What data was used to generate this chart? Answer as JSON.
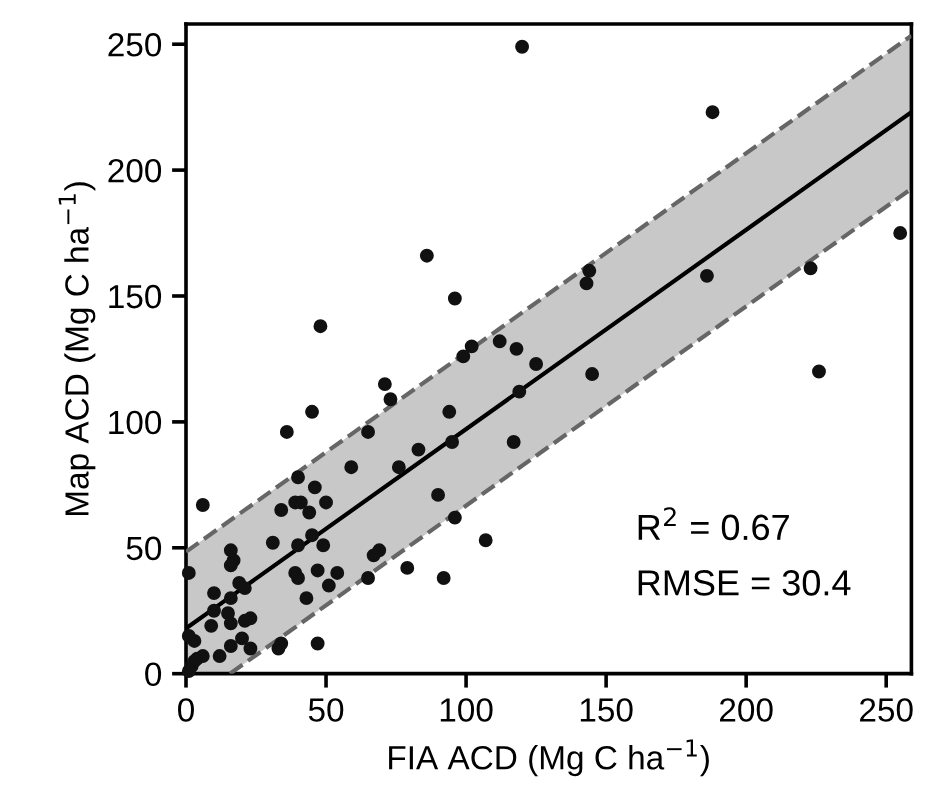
{
  "chart_data": {
    "type": "scatter",
    "xlabel": "FIA ACD (Mg C ha$^{−1}$)",
    "ylabel": "Map ACD (Mg C ha$^{−1}$)",
    "xlim": [
      0,
      259
    ],
    "ylim": [
      0,
      258
    ],
    "xticks": [
      0,
      50,
      100,
      150,
      200,
      250
    ],
    "yticks": [
      0,
      50,
      100,
      150,
      200,
      250
    ],
    "grid": false,
    "legend": false,
    "annotations": [
      "R$^{2}$ = 0.67",
      "RMSE = 30.4"
    ],
    "series": [
      {
        "color": "#111111",
        "marker": "circle",
        "x": [
          120,
          86,
          96,
          48,
          102,
          99,
          112,
          118,
          125,
          119,
          71,
          73,
          45,
          36,
          65,
          94,
          95,
          83,
          117,
          59,
          76,
          40,
          46,
          39,
          41,
          50,
          34,
          44,
          90,
          96,
          6,
          45,
          40,
          49,
          31,
          107,
          16,
          17,
          16,
          69,
          67,
          47,
          54,
          39,
          40,
          65,
          79,
          92,
          1,
          51,
          19,
          21,
          10,
          16,
          43,
          10,
          15,
          23,
          21,
          16,
          9,
          1,
          3,
          20,
          23,
          16,
          47,
          34,
          33,
          6,
          12,
          4,
          2,
          3,
          1,
          188,
          255,
          223,
          226,
          186,
          144,
          143,
          145
        ],
        "values": [
          249,
          166,
          149,
          138,
          130,
          126,
          132,
          129,
          123,
          112,
          115,
          109,
          104,
          96,
          96,
          104,
          92,
          89,
          92,
          82,
          82,
          78,
          74,
          68,
          68,
          68,
          65,
          64,
          71,
          62,
          67,
          55,
          51,
          51,
          52,
          53,
          49,
          45,
          43,
          49,
          47,
          41,
          40,
          40,
          38,
          38,
          42,
          38,
          40,
          35,
          36,
          34,
          32,
          30,
          30,
          25,
          24,
          22,
          21,
          20,
          19,
          15,
          13,
          14,
          10,
          11,
          12,
          12,
          10,
          7,
          7,
          6,
          3,
          5,
          1,
          223,
          175,
          161,
          120,
          158,
          160,
          155,
          119
        ]
      },
      {
        "type": "line",
        "color": "#000000",
        "marker": "none",
        "line_style": "solid",
        "x": [
          0,
          15.7,
          259
        ],
        "values": [
          18,
          30.4,
          223
        ],
        "lower": [
          0,
          0,
          192.6
        ],
        "upper": [
          48.4,
          60.8,
          253.4
        ]
      },
      {
        "type": "line",
        "color": "#666666",
        "marker": "none",
        "line_style": "dashed",
        "x": [
          0,
          259
        ],
        "values": [
          48.4,
          253.4
        ]
      },
      {
        "type": "line",
        "color": "#666666",
        "marker": "none",
        "line_style": "dashed",
        "x": [
          15.7,
          259
        ],
        "values": [
          0,
          192.6
        ]
      }
    ]
  }
}
